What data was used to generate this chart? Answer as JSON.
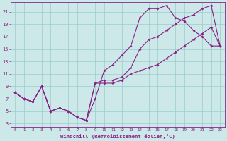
{
  "xlabel": "Windchill (Refroidissement éolien,°C)",
  "bg_color": "#cce8e8",
  "line_color": "#882288",
  "grid_color": "#99cccc",
  "xlim": [
    -0.5,
    23.5
  ],
  "ylim": [
    2.5,
    22.5
  ],
  "xticks": [
    0,
    1,
    2,
    3,
    4,
    5,
    6,
    7,
    8,
    9,
    10,
    11,
    12,
    13,
    14,
    15,
    16,
    17,
    18,
    19,
    20,
    21,
    22,
    23
  ],
  "yticks": [
    3,
    5,
    7,
    9,
    11,
    13,
    15,
    17,
    19,
    21
  ],
  "line1_x": [
    0,
    1,
    2,
    3,
    4,
    5,
    6,
    7,
    8,
    9,
    10,
    11,
    12,
    13,
    14,
    15,
    16,
    17,
    18,
    19,
    20,
    21,
    22,
    23
  ],
  "line1_y": [
    8,
    7,
    6.5,
    9,
    5,
    5.5,
    5,
    4,
    3.5,
    9.5,
    10,
    10,
    10.5,
    12,
    15,
    16.5,
    17,
    18,
    19,
    20,
    20.5,
    21.5,
    22,
    15.5
  ],
  "line2_x": [
    0,
    1,
    2,
    3,
    4,
    5,
    6,
    7,
    8,
    9,
    10,
    11,
    12,
    13,
    14,
    15,
    16,
    17,
    18,
    19,
    20,
    21,
    22,
    23
  ],
  "line2_y": [
    8,
    7,
    6.5,
    9,
    5,
    5.5,
    5,
    4,
    3.5,
    7,
    11.5,
    12.5,
    14,
    15.5,
    20,
    21.5,
    21.5,
    22,
    20,
    19.5,
    18,
    17,
    15.5,
    15.5
  ],
  "line3_x": [
    0,
    1,
    2,
    3,
    4,
    5,
    6,
    7,
    8,
    9,
    10,
    11,
    12,
    13,
    14,
    15,
    16,
    17,
    18,
    19,
    20,
    21,
    22,
    23
  ],
  "line3_y": [
    8,
    7,
    6.5,
    9,
    5,
    5.5,
    5,
    4,
    3.5,
    9.5,
    9.5,
    9.5,
    10,
    11,
    11.5,
    12,
    12.5,
    13.5,
    14.5,
    15.5,
    16.5,
    17.5,
    18.5,
    15.5
  ]
}
